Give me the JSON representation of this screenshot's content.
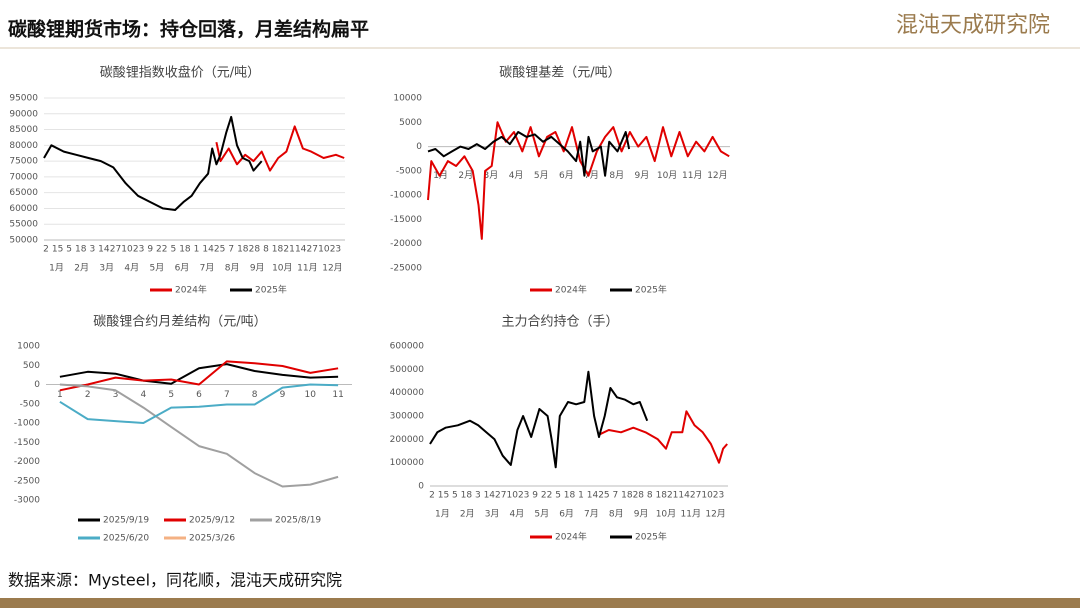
{
  "header": {
    "title": "碳酸锂期货市场：持仓回落，月差结构扁平",
    "logo": "混沌天成研究院"
  },
  "footer": {
    "source": "数据来源：Mysteel，同花顺，混沌天成研究院"
  },
  "chart_data": [
    {
      "type": "line",
      "title": "碳酸锂指数收盘价（元/吨）",
      "xlim": [
        1,
        366
      ],
      "ylim": [
        50000,
        95000
      ],
      "yticks": [
        50000,
        55000,
        60000,
        65000,
        70000,
        75000,
        80000,
        85000,
        90000,
        95000
      ],
      "grid": true,
      "day_labels": [
        "2",
        "15",
        "5",
        "18",
        "3",
        "14",
        "27",
        "10",
        "23",
        "9",
        "22",
        "5",
        "18",
        "1",
        "14",
        "25",
        "7",
        "18",
        "28",
        "8",
        "18",
        "21",
        "14",
        "27",
        "10",
        "23"
      ],
      "month_labels": [
        "1月",
        "2月",
        "3月",
        "4月",
        "5月",
        "6月",
        "7月",
        "8月",
        "9月",
        "10月",
        "11月",
        "12月"
      ],
      "series": [
        {
          "name": "2024年",
          "color": "#e00000",
          "x": [
            210,
            215,
            225,
            235,
            245,
            255,
            265,
            275,
            285,
            295,
            305,
            315,
            325,
            340,
            355,
            365
          ],
          "values": [
            81000,
            75000,
            79000,
            74000,
            77000,
            75000,
            78000,
            72000,
            76000,
            78000,
            86000,
            79000,
            78000,
            76000,
            77000,
            76000
          ]
        },
        {
          "name": "2025年",
          "color": "#000000",
          "x": [
            1,
            10,
            25,
            40,
            55,
            70,
            85,
            100,
            115,
            130,
            145,
            160,
            170,
            180,
            190,
            200,
            205,
            210,
            215,
            222,
            228,
            235,
            242,
            250,
            255,
            265
          ],
          "values": [
            76000,
            80000,
            78000,
            77000,
            76000,
            75000,
            73000,
            68000,
            64000,
            62000,
            60000,
            59500,
            62000,
            64000,
            68000,
            71000,
            79000,
            74000,
            77000,
            84000,
            89000,
            80000,
            76000,
            75000,
            72000,
            75000
          ]
        }
      ]
    },
    {
      "type": "line",
      "title": "碳酸锂基差（元/吨）",
      "xlim": [
        1,
        366
      ],
      "ylim": [
        -25000,
        10000
      ],
      "yticks": [
        -25000,
        -20000,
        -15000,
        -10000,
        -5000,
        0,
        5000,
        10000
      ],
      "grid": false,
      "month_labels": [
        "1月",
        "2月",
        "3月",
        "4月",
        "5月",
        "6月",
        "7月",
        "8月",
        "9月",
        "10月",
        "11月",
        "12月"
      ],
      "series": [
        {
          "name": "2024年",
          "color": "#e00000",
          "x": [
            1,
            5,
            15,
            25,
            35,
            45,
            55,
            62,
            66,
            70,
            78,
            85,
            95,
            105,
            115,
            125,
            135,
            145,
            155,
            165,
            175,
            185,
            195,
            205,
            215,
            225,
            235,
            245,
            255,
            265,
            275,
            285,
            295,
            305,
            315,
            325,
            335,
            345,
            355,
            365
          ],
          "values": [
            -11000,
            -3000,
            -6000,
            -3000,
            -4000,
            -2000,
            -5000,
            -12000,
            -19000,
            -5000,
            -4000,
            5000,
            1000,
            3000,
            -1000,
            4000,
            -2000,
            2000,
            3000,
            -1000,
            4000,
            -3000,
            -6000,
            -1000,
            2000,
            4000,
            -1000,
            3000,
            0,
            2000,
            -3000,
            4000,
            -2000,
            3000,
            -2000,
            1000,
            -1000,
            2000,
            -1000,
            -2000
          ]
        },
        {
          "name": "2025年",
          "color": "#000000",
          "x": [
            1,
            10,
            20,
            30,
            40,
            50,
            60,
            70,
            80,
            90,
            100,
            110,
            120,
            130,
            140,
            150,
            160,
            170,
            180,
            185,
            190,
            195,
            200,
            210,
            215,
            220,
            230,
            240,
            244
          ],
          "values": [
            -1000,
            -500,
            -2000,
            -1000,
            0,
            -500,
            500,
            -500,
            1000,
            2000,
            500,
            3000,
            2000,
            2500,
            1000,
            2000,
            500,
            -1000,
            -3000,
            1000,
            -6000,
            2000,
            -1000,
            0,
            -6000,
            1000,
            -1000,
            3000,
            -500
          ]
        }
      ]
    },
    {
      "type": "line",
      "title": "碳酸锂合约月差结构（元/吨）",
      "categories": [
        "1",
        "2",
        "3",
        "4",
        "5",
        "6",
        "7",
        "8",
        "9",
        "10",
        "11"
      ],
      "ylim": [
        -3000,
        1000
      ],
      "yticks": [
        -3000,
        -2500,
        -2000,
        -1500,
        -1000,
        -500,
        0,
        500,
        1000
      ],
      "grid": false,
      "series": [
        {
          "name": "2025/9/19",
          "color": "#000000",
          "values": [
            200,
            330,
            280,
            100,
            20,
            420,
            530,
            350,
            250,
            180,
            200
          ]
        },
        {
          "name": "2025/9/12",
          "color": "#e00000",
          "values": [
            -150,
            0,
            180,
            100,
            130,
            0,
            600,
            550,
            480,
            300,
            420
          ]
        },
        {
          "name": "2025/8/19",
          "color": "#a0a0a0",
          "values": [
            0,
            -50,
            -150,
            -600,
            -1100,
            -1600,
            -1800,
            -2300,
            -2650,
            -2600,
            -2400
          ]
        },
        {
          "name": "2025/6/20",
          "color": "#4bacc6",
          "values": [
            -450,
            -900,
            -950,
            -1000,
            -600,
            -580,
            -520,
            -520,
            -80,
            0,
            -20
          ]
        },
        {
          "name": "2025/3/26",
          "color": "#f4b183",
          "values": [
            null,
            null,
            null,
            null,
            null,
            null,
            null,
            null,
            null,
            null,
            null
          ]
        }
      ]
    },
    {
      "type": "line",
      "title": "主力合约持仓（手）",
      "xlim": [
        1,
        366
      ],
      "ylim": [
        0,
        600000
      ],
      "yticks": [
        0,
        100000,
        200000,
        300000,
        400000,
        500000,
        600000
      ],
      "grid": false,
      "day_labels": [
        "2",
        "15",
        "5",
        "18",
        "3",
        "14",
        "27",
        "10",
        "23",
        "9",
        "22",
        "5",
        "18",
        "1",
        "14",
        "25",
        "7",
        "18",
        "28",
        "8",
        "18",
        "21",
        "14",
        "27",
        "10",
        "23"
      ],
      "month_labels": [
        "1月",
        "2月",
        "3月",
        "4月",
        "5月",
        "6月",
        "7月",
        "8月",
        "9月",
        "10月",
        "11月",
        "12月"
      ],
      "series": [
        {
          "name": "2024年",
          "color": "#e00000",
          "x": [
            208,
            220,
            235,
            250,
            265,
            280,
            290,
            297,
            310,
            315,
            325,
            335,
            345,
            355,
            360,
            365
          ],
          "values": [
            220000,
            240000,
            230000,
            250000,
            230000,
            200000,
            160000,
            230000,
            230000,
            320000,
            260000,
            230000,
            180000,
            100000,
            160000,
            180000
          ]
        },
        {
          "name": "2025年",
          "color": "#000000",
          "x": [
            1,
            10,
            20,
            35,
            50,
            60,
            70,
            80,
            90,
            100,
            108,
            115,
            125,
            135,
            145,
            150,
            155,
            160,
            170,
            180,
            190,
            195,
            202,
            208,
            215,
            222,
            230,
            240,
            250,
            258,
            267
          ],
          "values": [
            180000,
            230000,
            250000,
            260000,
            280000,
            260000,
            230000,
            200000,
            130000,
            90000,
            240000,
            300000,
            210000,
            330000,
            300000,
            200000,
            80000,
            300000,
            360000,
            350000,
            360000,
            490000,
            300000,
            210000,
            300000,
            420000,
            380000,
            370000,
            350000,
            360000,
            280000
          ]
        }
      ]
    }
  ]
}
